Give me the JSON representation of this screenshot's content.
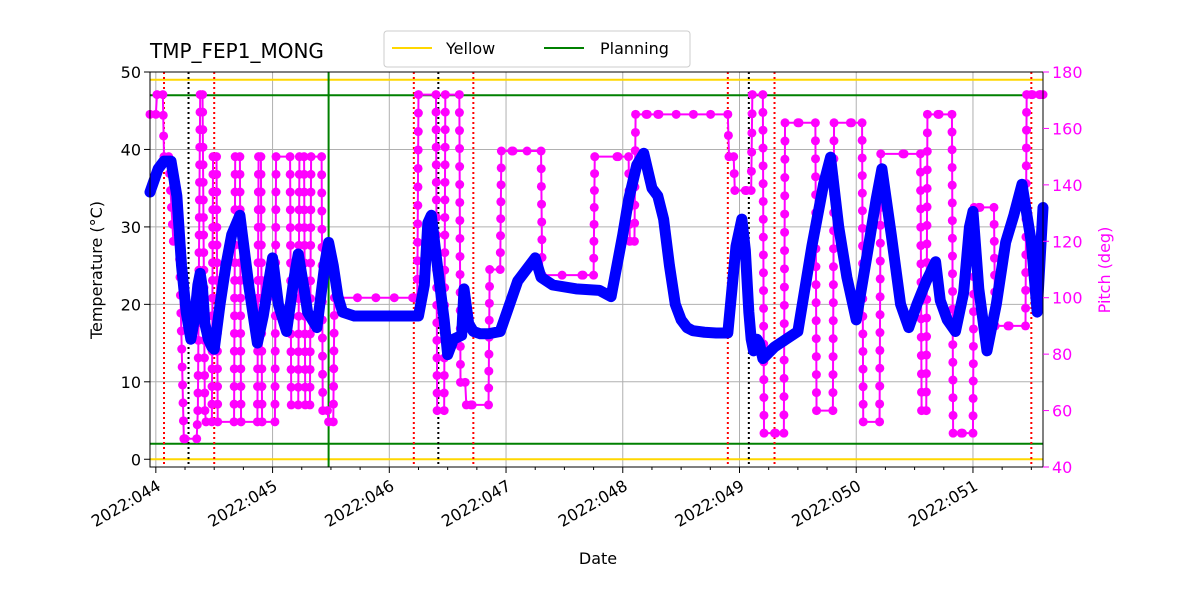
{
  "chart_data": {
    "type": "line",
    "title": "TMP_FEP1_MONG",
    "xlabel": "Date",
    "ylabel": "Temperature ($^\\circ$C)",
    "ylabel_display": "Temperature (°C)",
    "y2label": "Pitch (deg)",
    "xlim": [
      43.95,
      51.6
    ],
    "ylim": [
      -1,
      50
    ],
    "y2lim": [
      40,
      180
    ],
    "x_ticks": [
      {
        "value": 44,
        "label": "2022:044"
      },
      {
        "value": 45,
        "label": "2022:045"
      },
      {
        "value": 46,
        "label": "2022:046"
      },
      {
        "value": 47,
        "label": "2022:047"
      },
      {
        "value": 48,
        "label": "2022:048"
      },
      {
        "value": 49,
        "label": "2022:049"
      },
      {
        "value": 50,
        "label": "2022:050"
      },
      {
        "value": 51,
        "label": "2022:051"
      }
    ],
    "y_ticks": [
      "0",
      "10",
      "20",
      "30",
      "40",
      "50"
    ],
    "y2_ticks": [
      "40",
      "60",
      "80",
      "100",
      "120",
      "140",
      "160",
      "180"
    ],
    "grid": true,
    "legend": {
      "placement": "top-center",
      "entries": [
        "Yellow",
        "Planning"
      ]
    },
    "colors": {
      "temperature": "#0000ff",
      "pitch": "#ff00ff",
      "yellow": "#ffd700",
      "planning": "#008000",
      "red_lines": "#ff0000",
      "black_lines": "#000000",
      "pitch_axis": "#ff00ff"
    },
    "hlines": [
      {
        "name": "Yellow",
        "values": [
          49,
          0
        ]
      },
      {
        "name": "Planning",
        "values": [
          47,
          2
        ]
      }
    ],
    "vline_planning": [
      45.48
    ],
    "vlines_red": [
      44.07,
      44.5,
      46.21,
      46.72,
      48.9,
      49.3,
      51.5
    ],
    "vlines_black": [
      44.28,
      46.42,
      49.08
    ],
    "temperature": {
      "x": [
        43.95,
        44.02,
        44.07,
        44.13,
        44.18,
        44.22,
        44.26,
        44.3,
        44.33,
        44.36,
        44.38,
        44.4,
        44.42,
        44.45,
        44.48,
        44.5,
        44.55,
        44.6,
        44.65,
        44.72,
        44.8,
        44.87,
        44.92,
        45.0,
        45.05,
        45.12,
        45.18,
        45.22,
        45.27,
        45.3,
        45.38,
        45.45,
        45.48,
        45.52,
        45.56,
        45.6,
        45.7,
        45.9,
        46.1,
        46.25,
        46.3,
        46.33,
        46.36,
        46.42,
        46.47,
        46.5,
        46.55,
        46.62,
        46.64,
        46.68,
        46.72,
        46.78,
        46.85,
        46.95,
        47.1,
        47.25,
        47.3,
        47.4,
        47.6,
        47.8,
        47.9,
        47.95,
        48.0,
        48.05,
        48.12,
        48.18,
        48.25,
        48.3,
        48.35,
        48.4,
        48.45,
        48.5,
        48.55,
        48.6,
        48.7,
        48.8,
        48.85,
        48.9,
        48.97,
        49.02,
        49.05,
        49.08,
        49.1,
        49.12,
        49.15,
        49.17,
        49.2,
        49.3,
        49.4,
        49.5,
        49.62,
        49.72,
        49.78,
        49.85,
        49.92,
        50.0,
        50.1,
        50.17,
        50.22,
        50.3,
        50.38,
        50.45,
        50.52,
        50.6,
        50.68,
        50.72,
        50.78,
        50.85,
        50.92,
        50.97,
        51.0,
        51.05,
        51.12,
        51.2,
        51.28,
        51.35,
        51.42,
        51.5,
        51.55,
        51.6
      ],
      "y": [
        34.5,
        37.5,
        38.5,
        38.5,
        34.0,
        25.0,
        19.0,
        15.5,
        18.0,
        22.5,
        24.0,
        22.0,
        17.5,
        15.5,
        14.5,
        14.2,
        20.0,
        25.0,
        29.0,
        31.5,
        22.0,
        15.0,
        18.5,
        26.0,
        20.0,
        16.5,
        23.0,
        26.5,
        22.0,
        19.0,
        17.0,
        25.5,
        28.0,
        25.0,
        21.0,
        19.0,
        18.5,
        18.5,
        18.5,
        18.5,
        22.5,
        30.5,
        31.5,
        24.0,
        18.0,
        13.5,
        15.5,
        16.0,
        22.0,
        17.5,
        16.5,
        16.2,
        16.2,
        16.5,
        23.0,
        26.0,
        23.5,
        22.5,
        22.0,
        21.8,
        21.0,
        25.0,
        29.0,
        33.5,
        38.0,
        39.5,
        35.0,
        34.0,
        31.0,
        25.0,
        20.0,
        18.0,
        17.0,
        16.6,
        16.4,
        16.3,
        16.3,
        16.3,
        27.5,
        31.0,
        27.0,
        19.0,
        15.5,
        14.0,
        15.5,
        15.0,
        13.0,
        14.5,
        15.5,
        16.5,
        27.5,
        35.5,
        39.0,
        30.0,
        23.5,
        18.0,
        27.0,
        33.5,
        37.5,
        29.0,
        20.0,
        17.0,
        20.0,
        23.0,
        25.5,
        20.5,
        18.0,
        16.5,
        21.5,
        30.0,
        32.0,
        22.0,
        14.0,
        20.0,
        28.0,
        31.5,
        35.5,
        28.0,
        19.0,
        32.5
      ]
    },
    "pitch": {
      "x": [
        43.95,
        44.0,
        44.01,
        44.06,
        44.07,
        44.11,
        44.15,
        44.2,
        44.24,
        44.25,
        44.35,
        44.36,
        44.38,
        44.4,
        44.42,
        44.43,
        44.48,
        44.49,
        44.52,
        44.53,
        44.67,
        44.68,
        44.72,
        44.73,
        44.87,
        44.88,
        44.9,
        44.91,
        45.02,
        45.03,
        45.15,
        45.16,
        45.22,
        45.23,
        45.27,
        45.28,
        45.32,
        45.33,
        45.42,
        45.43,
        45.47,
        45.48,
        45.52,
        45.53,
        45.56,
        45.57,
        46.2,
        46.21,
        46.24,
        46.25,
        46.4,
        46.41,
        46.47,
        46.48,
        46.6,
        46.61,
        46.65,
        46.66,
        46.7,
        46.71,
        46.85,
        46.86,
        46.95,
        46.96,
        47.05,
        47.06,
        47.3,
        47.31,
        47.65,
        47.66,
        47.75,
        47.76,
        47.95,
        47.96,
        48.05,
        48.06,
        48.1,
        48.11,
        48.2,
        48.21,
        48.3,
        48.31,
        48.9,
        48.91,
        48.95,
        48.96,
        49.05,
        49.06,
        49.1,
        49.11,
        49.2,
        49.21,
        49.3,
        49.31,
        49.38,
        49.39,
        49.5,
        49.51,
        49.65,
        49.66,
        49.8,
        49.81,
        49.95,
        49.96,
        50.05,
        50.06,
        50.2,
        50.21,
        50.4,
        50.41,
        50.55,
        50.56,
        50.6,
        50.61,
        50.7,
        50.71,
        50.82,
        50.83,
        50.9,
        50.91,
        51.0,
        51.01,
        51.05,
        51.06,
        51.18,
        51.19,
        51.3,
        51.31,
        51.45,
        51.46,
        51.5,
        51.51,
        51.57,
        51.58,
        51.6
      ],
      "y": [
        165,
        165,
        172,
        172,
        150,
        150,
        120,
        120,
        50,
        50,
        50,
        60,
        172,
        172,
        60,
        56,
        56,
        150,
        150,
        56,
        56,
        150,
        150,
        56,
        56,
        150,
        150,
        56,
        56,
        150,
        150,
        62,
        62,
        150,
        150,
        62,
        62,
        150,
        150,
        60,
        60,
        56,
        56,
        100,
        100,
        100,
        100,
        100,
        100,
        172,
        172,
        60,
        60,
        172,
        172,
        70,
        70,
        62,
        62,
        62,
        62,
        110,
        110,
        152,
        152,
        152,
        152,
        108,
        108,
        108,
        108,
        150,
        150,
        150,
        150,
        120,
        120,
        165,
        165,
        165,
        165,
        165,
        165,
        150,
        150,
        138,
        138,
        138,
        138,
        172,
        172,
        52,
        52,
        52,
        52,
        162,
        162,
        162,
        162,
        60,
        60,
        162,
        162,
        162,
        162,
        56,
        56,
        151,
        151,
        151,
        151,
        60,
        60,
        165,
        165,
        165,
        165,
        52,
        52,
        52,
        52,
        132,
        132,
        132,
        132,
        90,
        90,
        90,
        90,
        172,
        172,
        172,
        172,
        172,
        172
      ]
    }
  }
}
